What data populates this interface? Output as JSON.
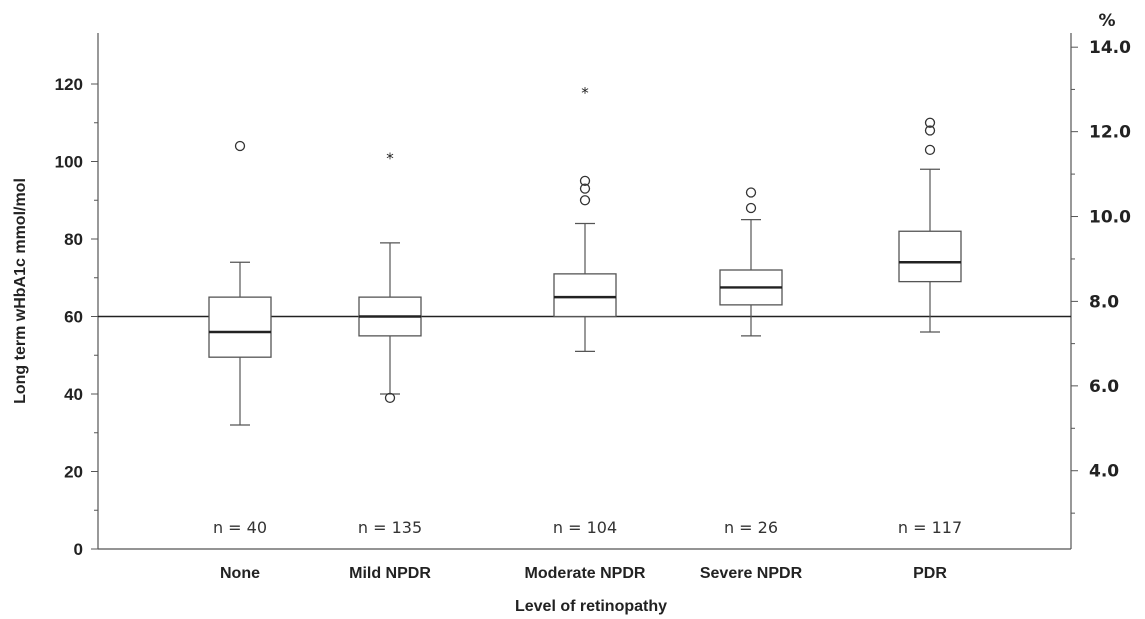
{
  "chart_data": {
    "type": "boxplot",
    "title": "",
    "xlabel": "Level of retinopathy",
    "ylabel": "Long term wHbA1c mmol/mol",
    "ylabel_right": "%",
    "ylim": [
      0,
      130
    ],
    "y_ticks": [
      0,
      20,
      40,
      60,
      80,
      100,
      120
    ],
    "y_right_ticks": [
      {
        "label": "4.0",
        "mmol": 20.2
      },
      {
        "label": "6.0",
        "mmol": 42.1
      },
      {
        "label": "8.0",
        "mmol": 63.9
      },
      {
        "label": "10.0",
        "mmol": 85.8
      },
      {
        "label": "12.0",
        "mmol": 107.7
      },
      {
        "label": "14.0",
        "mmol": 129.5
      }
    ],
    "reference_line": 60,
    "categories": [
      "None",
      "Mild NPDR",
      "Moderate NPDR",
      "Severe NPDR",
      "PDR"
    ],
    "n_labels": [
      "n = 40",
      "n = 135",
      "n = 104",
      "n = 26",
      "n = 117"
    ],
    "boxes": [
      {
        "whisker_low": 32,
        "q1": 49.5,
        "median": 56,
        "q3": 65,
        "whisker_high": 74,
        "outliers": [
          104
        ],
        "extremes": []
      },
      {
        "whisker_low": 40,
        "q1": 55,
        "median": 60,
        "q3": 65,
        "whisker_high": 79,
        "outliers": [
          39
        ],
        "extremes": [
          101
        ]
      },
      {
        "whisker_low": 51,
        "q1": 60,
        "median": 65,
        "q3": 71,
        "whisker_high": 84,
        "outliers": [
          90,
          93,
          95
        ],
        "extremes": [
          118
        ]
      },
      {
        "whisker_low": 55,
        "q1": 63,
        "median": 67.5,
        "q3": 72,
        "whisker_high": 85,
        "outliers": [
          88,
          92
        ],
        "extremes": []
      },
      {
        "whisker_low": 56,
        "q1": 69,
        "median": 74,
        "q3": 82,
        "whisker_high": 98,
        "outliers": [
          103,
          108,
          110
        ],
        "extremes": []
      }
    ]
  }
}
